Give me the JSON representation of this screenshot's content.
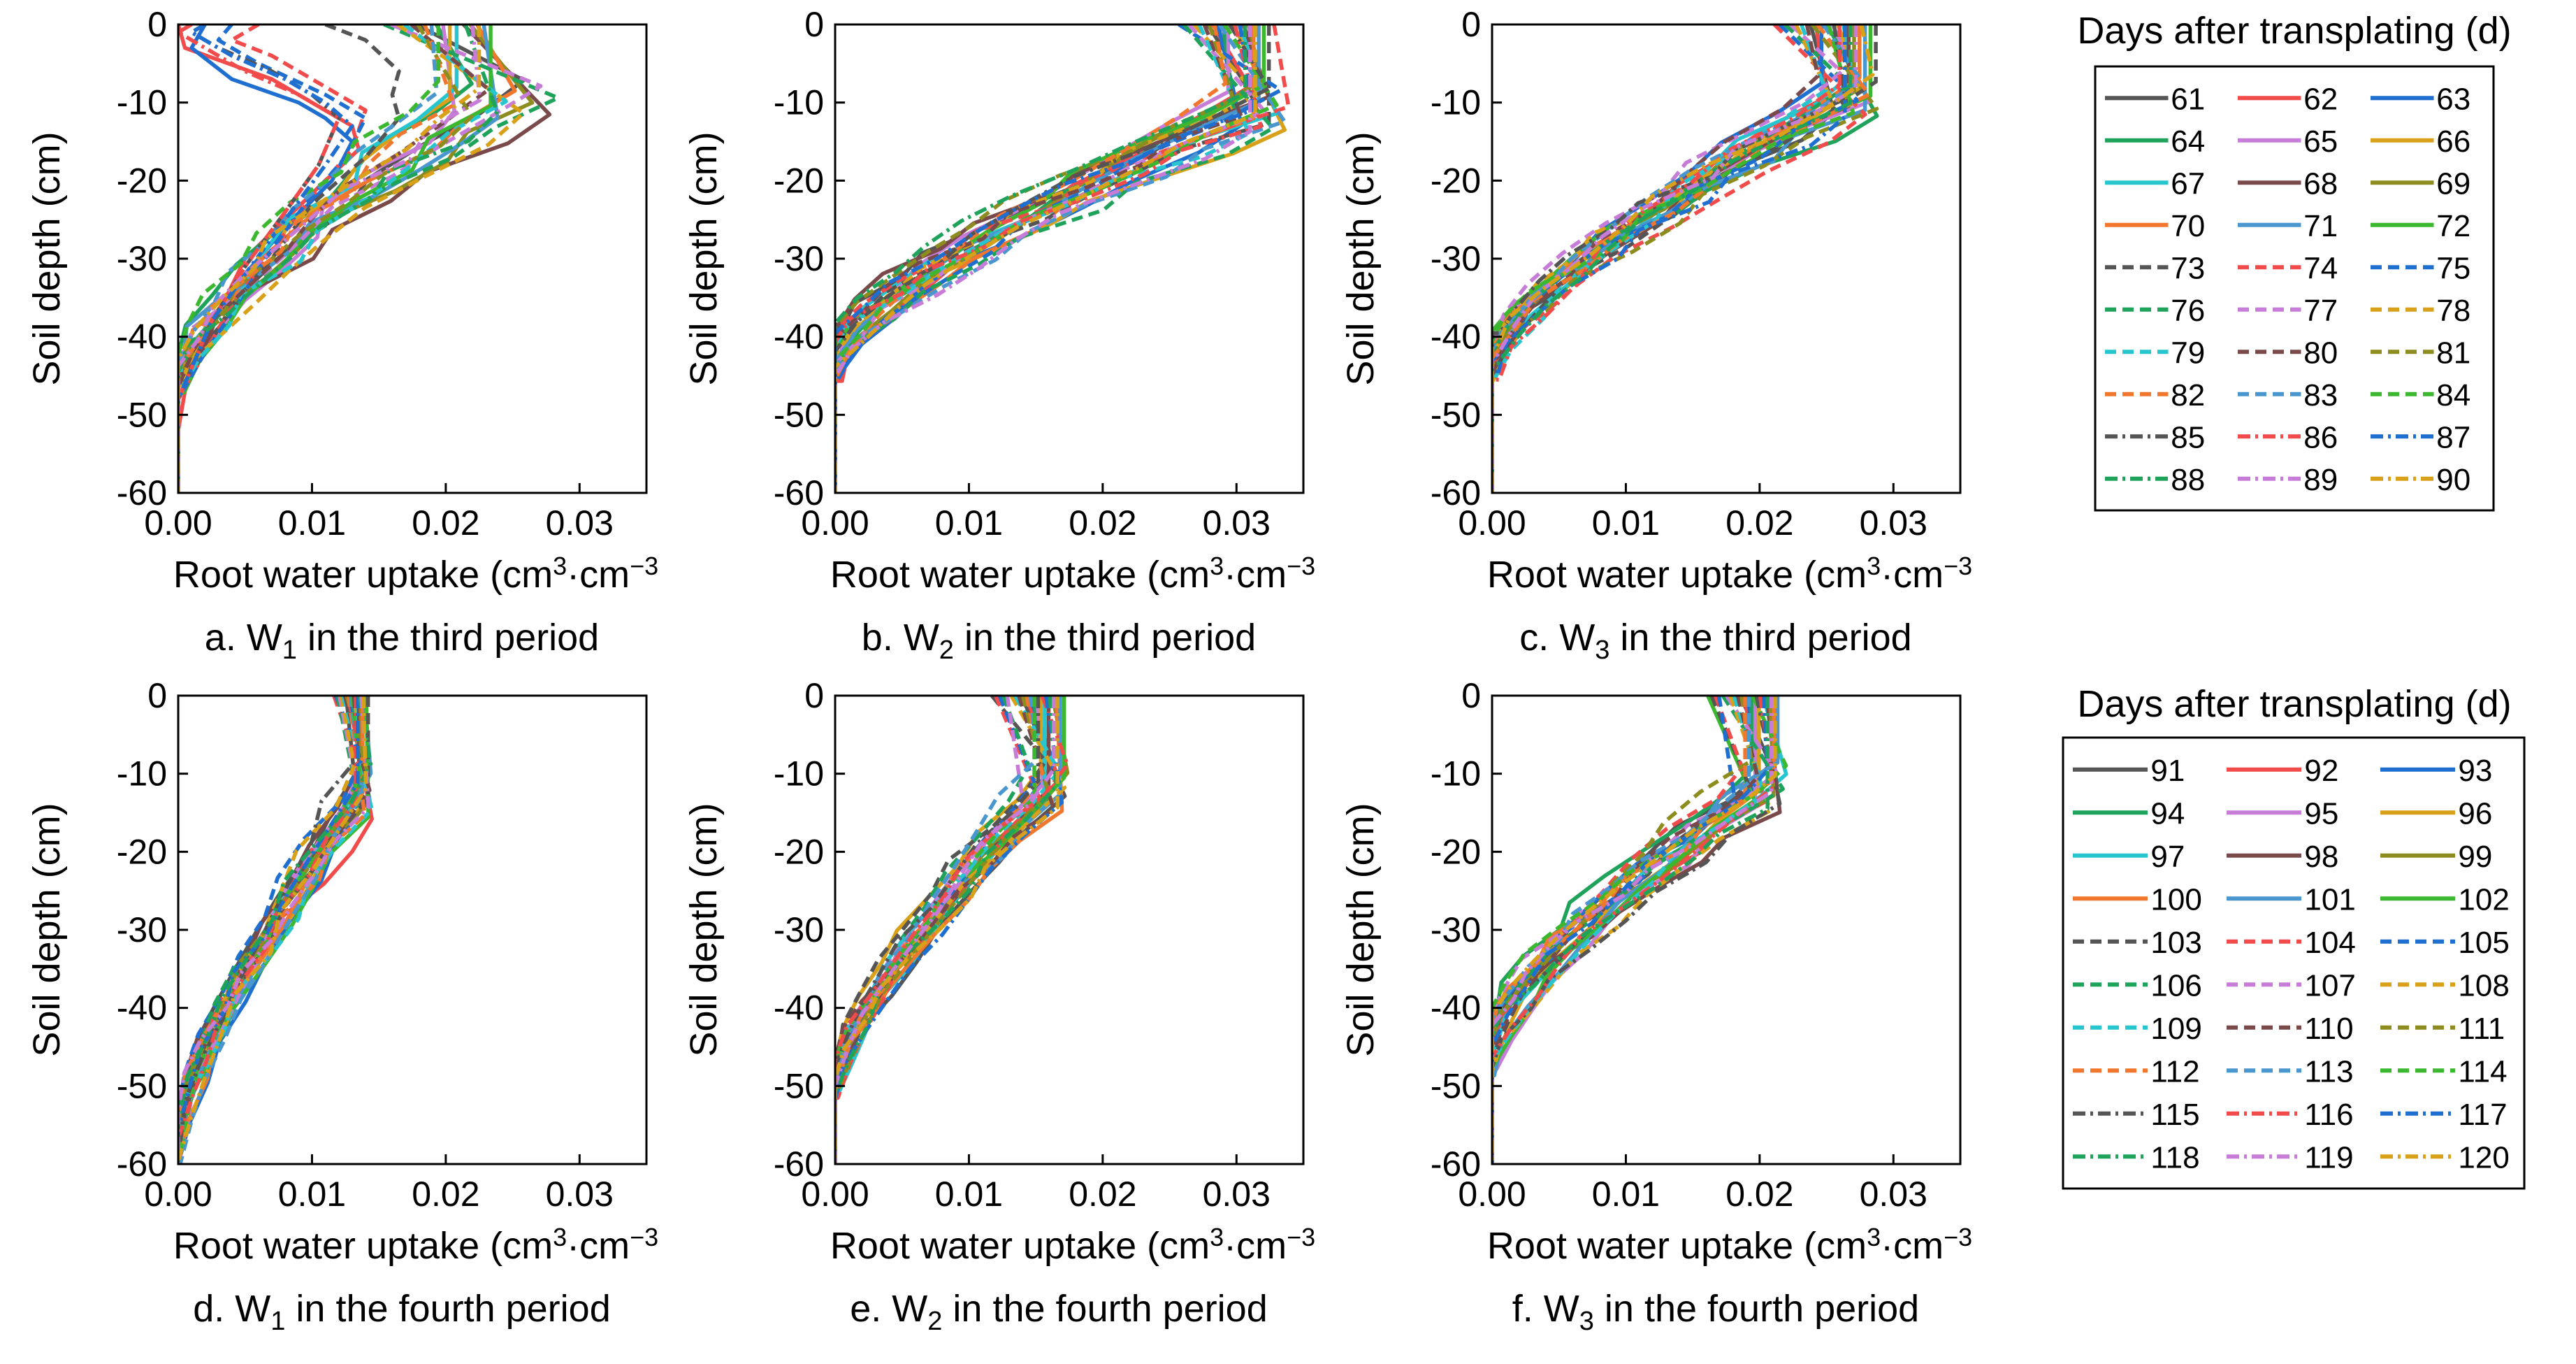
{
  "figure": {
    "legend_title": "Days after transplating (d)",
    "y_tick_labels": [
      "0",
      "-10",
      "-20",
      "-30",
      "-40",
      "-50",
      "-60"
    ],
    "x_tick_labels": [
      "0.00",
      "0.01",
      "0.02",
      "0.03"
    ]
  },
  "chart_data": [
    {
      "type": "line",
      "panel": "a",
      "caption_prefix": "a. W",
      "caption_sub": "1",
      "caption_suffix": " in the third period",
      "ylabel": "Soil depth (cm)",
      "xlabel_prefix": "Root water uptake (cm",
      "xlabel_sup": "3",
      "xlabel_suffix": "·cm",
      "xlabel_sup2": "−3",
      "xlim": [
        0,
        0.035
      ],
      "ylim": [
        -60,
        0
      ],
      "legend_group": 0,
      "profile": {
        "near_zero": [
          0.015,
          0.025
        ],
        "max_range": [
          0.018,
          0.029
        ],
        "turn_depth": [
          7,
          12
        ],
        "root_depth": [
          42,
          48
        ],
        "jitter": 0.0015
      },
      "special_series": [
        {
          "name": "62",
          "points": [
            [
              0.0,
              0
            ],
            [
              0.0005,
              -3
            ],
            [
              0.007,
              -7
            ],
            [
              0.01,
              -10
            ],
            [
              0.013,
              -13
            ],
            [
              0.0135,
              -16
            ],
            [
              0.011,
              -20
            ],
            [
              0.008,
              -25
            ],
            [
              0.005,
              -30
            ],
            [
              0.003,
              -37
            ],
            [
              0.0015,
              -42
            ],
            [
              0.0005,
              -47
            ],
            [
              0.0,
              -52
            ],
            [
              0.0,
              -60
            ]
          ]
        },
        {
          "name": "63",
          "points": [
            [
              0.002,
              0
            ],
            [
              0.001,
              -3
            ],
            [
              0.004,
              -7
            ],
            [
              0.009,
              -10
            ],
            [
              0.011,
              -12
            ],
            [
              0.013,
              -15
            ],
            [
              0.0115,
              -20
            ],
            [
              0.008,
              -26
            ],
            [
              0.005,
              -32
            ],
            [
              0.0025,
              -38
            ],
            [
              0.001,
              -44
            ],
            [
              0.0,
              -48
            ],
            [
              0.0,
              -60
            ]
          ]
        },
        {
          "name": "73",
          "points": [
            [
              0.011,
              0
            ],
            [
              0.014,
              -2
            ],
            [
              0.0165,
              -6
            ],
            [
              0.016,
              -9
            ],
            [
              0.0165,
              -12
            ],
            [
              0.014,
              -17
            ],
            [
              0.01,
              -23
            ],
            [
              0.007,
              -30
            ],
            [
              0.004,
              -36
            ],
            [
              0.002,
              -42
            ],
            [
              0.0,
              -47
            ],
            [
              0.0,
              -60
            ]
          ]
        },
        {
          "name": "74",
          "points": [
            [
              0.006,
              0
            ],
            [
              0.004,
              -2
            ],
            [
              0.007,
              -4
            ],
            [
              0.011,
              -8
            ],
            [
              0.014,
              -11
            ],
            [
              0.013,
              -16
            ],
            [
              0.01,
              -22
            ],
            [
              0.007,
              -29
            ],
            [
              0.004,
              -36
            ],
            [
              0.002,
              -42
            ],
            [
              0.0,
              -48
            ],
            [
              0.0,
              -60
            ]
          ]
        },
        {
          "name": "75",
          "points": [
            [
              0.004,
              0
            ],
            [
              0.003,
              -2
            ],
            [
              0.006,
              -5
            ],
            [
              0.011,
              -9
            ],
            [
              0.014,
              -12
            ],
            [
              0.0125,
              -17
            ],
            [
              0.0095,
              -23
            ],
            [
              0.0065,
              -30
            ],
            [
              0.004,
              -37
            ],
            [
              0.002,
              -42
            ],
            [
              0.0,
              -48
            ],
            [
              0.0,
              -60
            ]
          ]
        },
        {
          "name": "85",
          "points": [
            [
              0.002,
              0
            ],
            [
              0.001,
              -1
            ],
            [
              0.003,
              -3
            ],
            [
              0.007,
              -6
            ],
            [
              0.01,
              -9
            ],
            [
              0.012,
              -12
            ],
            [
              0.0105,
              -18
            ],
            [
              0.008,
              -24
            ],
            [
              0.005,
              -31
            ],
            [
              0.0025,
              -38
            ],
            [
              0.001,
              -44
            ],
            [
              0.0,
              -48
            ],
            [
              0.0,
              -60
            ]
          ]
        },
        {
          "name": "86",
          "points": [
            [
              0.001,
              0
            ],
            [
              0.0,
              -1
            ],
            [
              0.002,
              -3
            ],
            [
              0.005,
              -6
            ],
            [
              0.009,
              -9
            ],
            [
              0.012,
              -12
            ],
            [
              0.0105,
              -18
            ],
            [
              0.008,
              -24
            ],
            [
              0.005,
              -31
            ],
            [
              0.0025,
              -38
            ],
            [
              0.001,
              -44
            ],
            [
              0.0,
              -48
            ],
            [
              0.0,
              -60
            ]
          ]
        },
        {
          "name": "87",
          "points": [
            [
              0.002,
              0
            ],
            [
              0.001,
              -1
            ],
            [
              0.004,
              -4
            ],
            [
              0.008,
              -7
            ],
            [
              0.011,
              -10
            ],
            [
              0.013,
              -13
            ],
            [
              0.011,
              -18
            ],
            [
              0.008,
              -25
            ],
            [
              0.005,
              -32
            ],
            [
              0.0025,
              -38
            ],
            [
              0.001,
              -44
            ],
            [
              0.0,
              -48
            ],
            [
              0.0,
              -60
            ]
          ]
        }
      ]
    },
    {
      "type": "line",
      "panel": "b",
      "caption_prefix": "b. W",
      "caption_sub": "2",
      "caption_suffix": " in the third period",
      "ylabel": "Soil depth (cm)",
      "xlabel_prefix": "Root water uptake (cm",
      "xlabel_sup": "3",
      "xlabel_suffix": "·cm",
      "xlabel_sup2": "−3",
      "xlim": [
        0,
        0.035
      ],
      "ylim": [
        -60,
        0
      ],
      "legend_group": 0,
      "profile": {
        "near_zero": [
          0.0255,
          0.033
        ],
        "max_range": [
          0.029,
          0.034
        ],
        "turn_depth": [
          7,
          14
        ],
        "root_depth": [
          38,
          46
        ],
        "jitter": 0.0015
      },
      "special_series": []
    },
    {
      "type": "line",
      "panel": "c",
      "caption_prefix": "c. W",
      "caption_sub": "3",
      "caption_suffix": " in the third period",
      "ylabel": "Soil depth (cm)",
      "xlabel_prefix": "Root water uptake (cm",
      "xlabel_sup": "3",
      "xlabel_suffix": "·cm",
      "xlabel_sup2": "−3",
      "xlim": [
        0,
        0.035
      ],
      "ylim": [
        -60,
        0
      ],
      "legend_group": 0,
      "profile": {
        "near_zero": [
          0.021,
          0.029
        ],
        "max_range": [
          0.024,
          0.029
        ],
        "turn_depth": [
          6,
          12
        ],
        "root_depth": [
          39,
          46
        ],
        "jitter": 0.0015
      },
      "special_series": []
    },
    {
      "type": "line",
      "panel": "d",
      "caption_prefix": "d. W",
      "caption_sub": "1",
      "caption_suffix": " in the fourth period",
      "ylabel": "Soil depth (cm)",
      "xlabel_prefix": "Root water uptake (cm",
      "xlabel_sup": "3",
      "xlabel_suffix": "·cm",
      "xlabel_sup2": "−3",
      "xlim": [
        0,
        0.035
      ],
      "ylim": [
        -60,
        0
      ],
      "legend_group": 1,
      "profile": {
        "near_zero": [
          0.0115,
          0.0142
        ],
        "max_range": [
          0.013,
          0.0145
        ],
        "turn_depth": [
          8,
          16
        ],
        "root_depth": [
          52,
          60
        ],
        "jitter": 0.0008
      },
      "special_series": []
    },
    {
      "type": "line",
      "panel": "e",
      "caption_prefix": "e. W",
      "caption_sub": "2",
      "caption_suffix": " in the fourth period",
      "ylabel": "Soil depth (cm)",
      "xlabel_prefix": "Root water uptake (cm",
      "xlabel_sup": "3",
      "xlabel_suffix": "·cm",
      "xlabel_sup2": "−3",
      "xlim": [
        0,
        0.035
      ],
      "ylim": [
        -60,
        0
      ],
      "legend_group": 1,
      "profile": {
        "near_zero": [
          0.0115,
          0.0172
        ],
        "max_range": [
          0.014,
          0.0175
        ],
        "turn_depth": [
          8,
          15
        ],
        "root_depth": [
          46,
          52
        ],
        "jitter": 0.0008
      },
      "special_series": []
    },
    {
      "type": "line",
      "panel": "f",
      "caption_prefix": "f. W",
      "caption_sub": "3",
      "caption_suffix": " in the fourth period",
      "ylabel": "Soil depth (cm)",
      "xlabel_prefix": "Root water uptake (cm",
      "xlabel_sup": "3",
      "xlabel_suffix": "·cm",
      "xlabel_sup2": "−3",
      "xlim": [
        0,
        0.035
      ],
      "ylim": [
        -60,
        0
      ],
      "legend_group": 1,
      "profile": {
        "near_zero": [
          0.016,
          0.0215
        ],
        "max_range": [
          0.018,
          0.022
        ],
        "turn_depth": [
          8,
          15
        ],
        "root_depth": [
          40,
          49
        ],
        "jitter": 0.0012
      },
      "special_series": []
    }
  ],
  "legends": [
    {
      "title": "Days after transplating (d)",
      "entries": [
        {
          "label": "61",
          "color": "#555555",
          "dash": "solid"
        },
        {
          "label": "62",
          "color": "#f24b4b",
          "dash": "solid"
        },
        {
          "label": "63",
          "color": "#1f6fd1",
          "dash": "solid"
        },
        {
          "label": "64",
          "color": "#1fa35b",
          "dash": "solid"
        },
        {
          "label": "65",
          "color": "#c77dd8",
          "dash": "solid"
        },
        {
          "label": "66",
          "color": "#d9a11a",
          "dash": "solid"
        },
        {
          "label": "67",
          "color": "#27c6cf",
          "dash": "solid"
        },
        {
          "label": "68",
          "color": "#7a4a4a",
          "dash": "solid"
        },
        {
          "label": "69",
          "color": "#8c8c1f",
          "dash": "solid"
        },
        {
          "label": "70",
          "color": "#f2772e",
          "dash": "solid"
        },
        {
          "label": "71",
          "color": "#4a97cf",
          "dash": "solid"
        },
        {
          "label": "72",
          "color": "#3bb82f",
          "dash": "solid"
        },
        {
          "label": "73",
          "color": "#555555",
          "dash": "dash"
        },
        {
          "label": "74",
          "color": "#f24b4b",
          "dash": "dash"
        },
        {
          "label": "75",
          "color": "#1f6fd1",
          "dash": "dash"
        },
        {
          "label": "76",
          "color": "#1fa35b",
          "dash": "dash"
        },
        {
          "label": "77",
          "color": "#c77dd8",
          "dash": "dash"
        },
        {
          "label": "78",
          "color": "#d9a11a",
          "dash": "dash"
        },
        {
          "label": "79",
          "color": "#27c6cf",
          "dash": "dash"
        },
        {
          "label": "80",
          "color": "#7a4a4a",
          "dash": "dash"
        },
        {
          "label": "81",
          "color": "#8c8c1f",
          "dash": "dash"
        },
        {
          "label": "82",
          "color": "#f2772e",
          "dash": "dash"
        },
        {
          "label": "83",
          "color": "#4a97cf",
          "dash": "dash"
        },
        {
          "label": "84",
          "color": "#3bb82f",
          "dash": "dash"
        },
        {
          "label": "85",
          "color": "#555555",
          "dash": "dashdot"
        },
        {
          "label": "86",
          "color": "#f24b4b",
          "dash": "dashdot"
        },
        {
          "label": "87",
          "color": "#1f6fd1",
          "dash": "dashdot"
        },
        {
          "label": "88",
          "color": "#1fa35b",
          "dash": "dashdot"
        },
        {
          "label": "89",
          "color": "#c77dd8",
          "dash": "dashdot"
        },
        {
          "label": "90",
          "color": "#d9a11a",
          "dash": "dashdot"
        }
      ]
    },
    {
      "title": "Days after transplating (d)",
      "entries": [
        {
          "label": "91",
          "color": "#555555",
          "dash": "solid"
        },
        {
          "label": "92",
          "color": "#f24b4b",
          "dash": "solid"
        },
        {
          "label": "93",
          "color": "#1f6fd1",
          "dash": "solid"
        },
        {
          "label": "94",
          "color": "#1fa35b",
          "dash": "solid"
        },
        {
          "label": "95",
          "color": "#c77dd8",
          "dash": "solid"
        },
        {
          "label": "96",
          "color": "#d9a11a",
          "dash": "solid"
        },
        {
          "label": "97",
          "color": "#27c6cf",
          "dash": "solid"
        },
        {
          "label": "98",
          "color": "#7a4a4a",
          "dash": "solid"
        },
        {
          "label": "99",
          "color": "#8c8c1f",
          "dash": "solid"
        },
        {
          "label": "100",
          "color": "#f2772e",
          "dash": "solid"
        },
        {
          "label": "101",
          "color": "#4a97cf",
          "dash": "solid"
        },
        {
          "label": "102",
          "color": "#3bb82f",
          "dash": "solid"
        },
        {
          "label": "103",
          "color": "#555555",
          "dash": "dash"
        },
        {
          "label": "104",
          "color": "#f24b4b",
          "dash": "dash"
        },
        {
          "label": "105",
          "color": "#1f6fd1",
          "dash": "dash"
        },
        {
          "label": "106",
          "color": "#1fa35b",
          "dash": "dash"
        },
        {
          "label": "107",
          "color": "#c77dd8",
          "dash": "dash"
        },
        {
          "label": "108",
          "color": "#d9a11a",
          "dash": "dash"
        },
        {
          "label": "109",
          "color": "#27c6cf",
          "dash": "dash"
        },
        {
          "label": "110",
          "color": "#7a4a4a",
          "dash": "dash"
        },
        {
          "label": "111",
          "color": "#8c8c1f",
          "dash": "dash"
        },
        {
          "label": "112",
          "color": "#f2772e",
          "dash": "dash"
        },
        {
          "label": "113",
          "color": "#4a97cf",
          "dash": "dash"
        },
        {
          "label": "114",
          "color": "#3bb82f",
          "dash": "dash"
        },
        {
          "label": "115",
          "color": "#555555",
          "dash": "dashdot"
        },
        {
          "label": "116",
          "color": "#f24b4b",
          "dash": "dashdot"
        },
        {
          "label": "117",
          "color": "#1f6fd1",
          "dash": "dashdot"
        },
        {
          "label": "118",
          "color": "#1fa35b",
          "dash": "dashdot"
        },
        {
          "label": "119",
          "color": "#c77dd8",
          "dash": "dashdot"
        },
        {
          "label": "120",
          "color": "#d9a11a",
          "dash": "dashdot"
        }
      ]
    }
  ]
}
